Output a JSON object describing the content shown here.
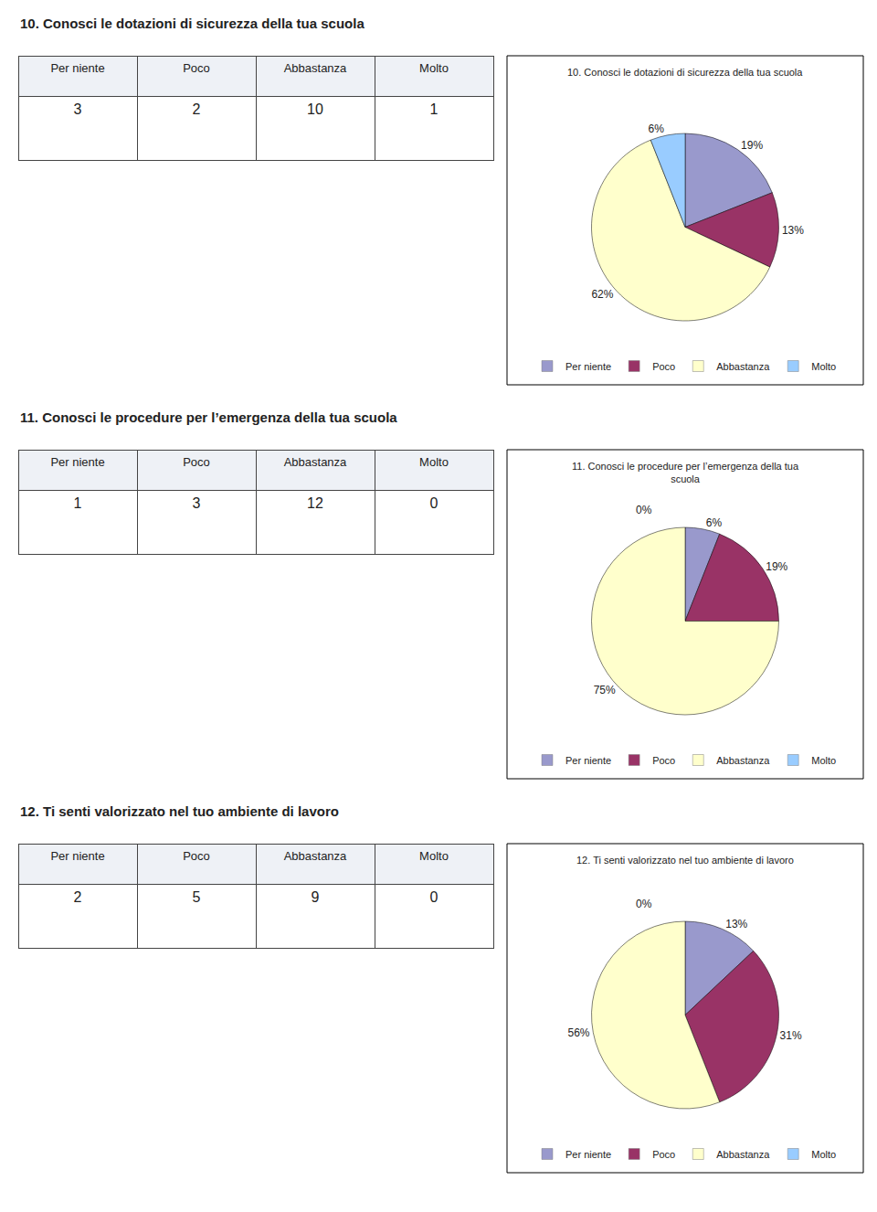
{
  "chart_data": [
    {
      "type": "table",
      "title": "10. Conosci le dotazioni di sicurezza della tua scuola",
      "categories": [
        "Per niente",
        "Poco",
        "Abbastanza",
        "Molto"
      ],
      "values": [
        3,
        2,
        10,
        1
      ]
    },
    {
      "type": "pie",
      "title": "10. Conosci le dotazioni di sicurezza della tua scuola",
      "categories": [
        "Per niente",
        "Poco",
        "Abbastanza",
        "Molto"
      ],
      "values": [
        19,
        13,
        62,
        6
      ],
      "value_labels": [
        "19%",
        "13%",
        "62%",
        "6%"
      ],
      "colors": [
        "#9999CC",
        "#993366",
        "#FFFFCC",
        "#99CCFF"
      ],
      "data_labels": true,
      "legend": "bottom"
    },
    {
      "type": "table",
      "title": "11. Conosci le procedure per l’emergenza della tua scuola",
      "categories": [
        "Per niente",
        "Poco",
        "Abbastanza",
        "Molto"
      ],
      "values": [
        1,
        3,
        12,
        0
      ]
    },
    {
      "type": "pie",
      "title": "11. Conosci le procedure per l’emergenza della tua\nscuola",
      "categories": [
        "Per niente",
        "Poco",
        "Abbastanza",
        "Molto"
      ],
      "values": [
        6,
        19,
        75,
        0
      ],
      "value_labels": [
        "6%",
        "19%",
        "75%",
        "0%"
      ],
      "colors": [
        "#9999CC",
        "#993366",
        "#FFFFCC",
        "#99CCFF"
      ],
      "data_labels": true,
      "legend": "bottom"
    },
    {
      "type": "table",
      "title": "12. Ti senti valorizzato nel tuo ambiente di lavoro",
      "categories": [
        "Per niente",
        "Poco",
        "Abbastanza",
        "Molto"
      ],
      "values": [
        2,
        5,
        9,
        0
      ]
    },
    {
      "type": "pie",
      "title": "12. Ti senti valorizzato nel tuo ambiente di lavoro",
      "categories": [
        "Per niente",
        "Poco",
        "Abbastanza",
        "Molto"
      ],
      "values": [
        13,
        31,
        56,
        0
      ],
      "value_labels": [
        "13%",
        "31%",
        "56%",
        "0%"
      ],
      "colors": [
        "#9999CC",
        "#993366",
        "#FFFFCC",
        "#99CCFF"
      ],
      "data_labels": true,
      "legend": "bottom"
    }
  ]
}
